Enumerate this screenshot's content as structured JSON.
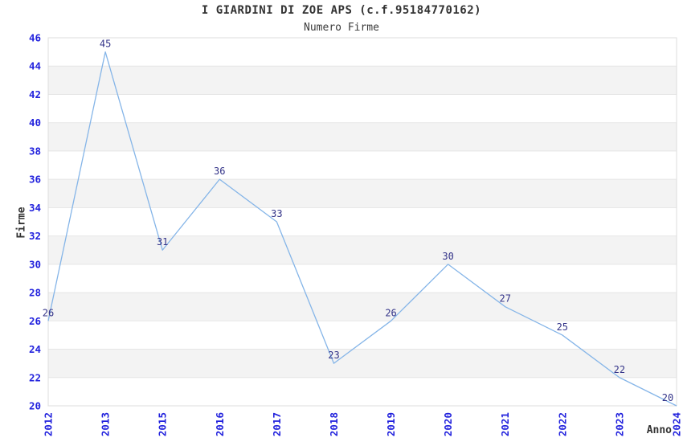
{
  "chart_data": {
    "type": "line",
    "title": "I GIARDINI DI ZOE APS (c.f.95184770162)",
    "subtitle": "Numero Firme",
    "xlabel": "Anno",
    "ylabel": "Firme",
    "categories": [
      "2012",
      "2013",
      "2015",
      "2016",
      "2017",
      "2018",
      "2019",
      "2020",
      "2021",
      "2022",
      "2023",
      "2024"
    ],
    "values": [
      26,
      45,
      31,
      36,
      33,
      23,
      26,
      30,
      27,
      25,
      22,
      20
    ],
    "ylim": [
      20,
      46
    ],
    "ytick_step": 2,
    "grid": "horizontal-bands",
    "legend": "none",
    "point_labels_visible": true,
    "style": {
      "line_color": "#85b5e8",
      "tick_label_color": "#2222dd",
      "value_label_color": "#333388",
      "band_color": "#f3f3f3",
      "grid_color": "#e5e5e5",
      "border_color": "#dddddd",
      "title_color": "#333333",
      "background_color": "#ffffff"
    }
  }
}
